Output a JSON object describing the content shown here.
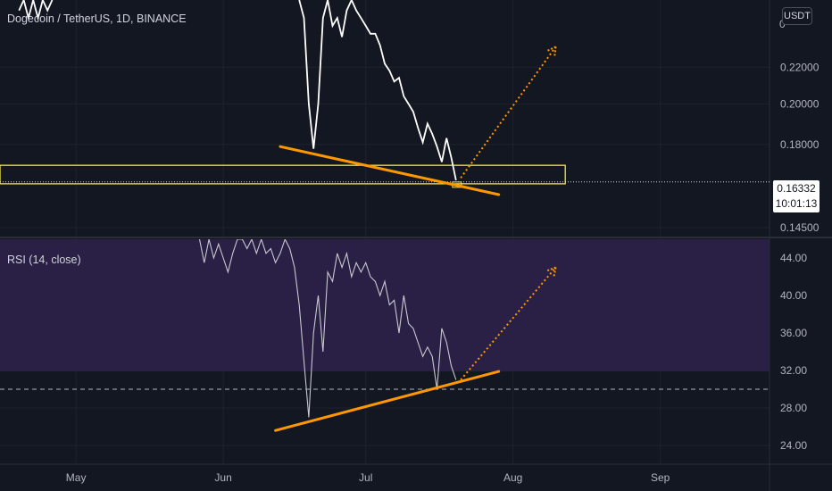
{
  "header": {
    "symbol_title": "Dogecoin / TetherUS, 1D, BINANCE",
    "currency_badge": "USDT"
  },
  "price_tag": {
    "price": "0.16332",
    "countdown": "10:01:13"
  },
  "rsi_label": "RSI (14, close)",
  "colors": {
    "background": "#131722",
    "price_line": "#ffffff",
    "trendline": "#ff9800",
    "support_zone": "#f5e642",
    "rsi_band": "#2a1f44",
    "axis_text": "#b2b5be"
  },
  "chart_data": [
    {
      "type": "line",
      "panel": "price",
      "series_label": "Dogecoin / TetherUS, 1D, BINANCE",
      "scale": "log",
      "ylim": [
        0.142,
        0.262
      ],
      "y_ticks": [
        0.145,
        0.18,
        0.2,
        0.22
      ],
      "y_tick_labels": [
        "0.14500",
        "0.18000",
        "0.20000",
        "0.22000"
      ],
      "top_tick_label": "0",
      "current_price": 0.16332,
      "x_labels": [
        "May",
        "Jun",
        "Jul",
        "Aug",
        "Sep"
      ],
      "x_label_dates": [
        "2021-05-01",
        "2021-06-01",
        "2021-07-01",
        "2021-08-01",
        "2021-09-01"
      ],
      "xlim": [
        "2021-04-15",
        "2021-09-24"
      ],
      "series": [
        {
          "x": [
            "2021-04-19",
            "2021-04-20",
            "2021-04-21",
            "2021-04-22",
            "2021-04-23",
            "2021-04-24",
            "2021-04-25",
            "2021-04-26",
            "2021-06-17",
            "2021-06-18",
            "2021-06-19",
            "2021-06-20",
            "2021-06-21",
            "2021-06-22",
            "2021-06-23",
            "2021-06-24",
            "2021-06-25",
            "2021-06-26",
            "2021-06-27",
            "2021-06-28",
            "2021-06-29",
            "2021-06-30",
            "2021-07-01",
            "2021-07-02",
            "2021-07-03",
            "2021-07-04",
            "2021-07-05",
            "2021-07-06",
            "2021-07-07",
            "2021-07-08",
            "2021-07-09",
            "2021-07-10",
            "2021-07-11",
            "2021-07-12",
            "2021-07-13",
            "2021-07-14",
            "2021-07-15",
            "2021-07-16",
            "2021-07-17",
            "2021-07-18",
            "2021-07-19",
            "2021-07-20"
          ],
          "values": [
            0.255,
            0.262,
            0.25,
            0.262,
            0.25,
            0.262,
            0.255,
            0.262,
            0.262,
            0.25,
            0.2,
            0.178,
            0.2,
            0.25,
            0.262,
            0.245,
            0.25,
            0.238,
            0.255,
            0.262,
            0.255,
            0.25,
            0.245,
            0.24,
            0.24,
            0.233,
            0.222,
            0.218,
            0.212,
            0.214,
            0.204,
            0.2,
            0.196,
            0.188,
            0.181,
            0.19,
            0.185,
            0.179,
            0.172,
            0.183,
            0.174,
            0.164
          ]
        }
      ],
      "annotations": {
        "support_zone": [
          0.1625,
          0.1705
        ],
        "trendline": {
          "from": [
            "2021-06-13",
            0.179
          ],
          "to": [
            "2021-07-29",
            0.158
          ]
        },
        "projection": {
          "from": [
            "2021-07-21",
            0.165
          ],
          "to": [
            "2021-08-10",
            0.232
          ]
        },
        "price_line": 0.16332
      },
      "grid": true
    },
    {
      "type": "line",
      "panel": "rsi",
      "title": "RSI (14, close)",
      "ylim": [
        22,
        46
      ],
      "y_ticks": [
        24,
        28,
        32,
        36,
        40,
        44
      ],
      "y_tick_labels": [
        "24.00",
        "28.00",
        "32.00",
        "36.00",
        "40.00",
        "44.00"
      ],
      "band": [
        31.9,
        46
      ],
      "reference_line": 30,
      "series": [
        {
          "x": [
            "2021-05-27",
            "2021-05-28",
            "2021-05-29",
            "2021-05-30",
            "2021-05-31",
            "2021-06-01",
            "2021-06-02",
            "2021-06-03",
            "2021-06-04",
            "2021-06-05",
            "2021-06-06",
            "2021-06-07",
            "2021-06-08",
            "2021-06-09",
            "2021-06-10",
            "2021-06-11",
            "2021-06-12",
            "2021-06-13",
            "2021-06-14",
            "2021-06-15",
            "2021-06-16",
            "2021-06-17",
            "2021-06-18",
            "2021-06-19",
            "2021-06-20",
            "2021-06-21",
            "2021-06-22",
            "2021-06-23",
            "2021-06-24",
            "2021-06-25",
            "2021-06-26",
            "2021-06-27",
            "2021-06-28",
            "2021-06-29",
            "2021-06-30",
            "2021-07-01",
            "2021-07-02",
            "2021-07-03",
            "2021-07-04",
            "2021-07-05",
            "2021-07-06",
            "2021-07-07",
            "2021-07-08",
            "2021-07-09",
            "2021-07-10",
            "2021-07-11",
            "2021-07-12",
            "2021-07-13",
            "2021-07-14",
            "2021-07-15",
            "2021-07-16",
            "2021-07-17",
            "2021-07-18",
            "2021-07-19",
            "2021-07-20"
          ],
          "values": [
            46,
            43.5,
            46,
            44,
            45.5,
            44,
            42.5,
            44.5,
            46,
            46,
            45,
            46,
            44.5,
            46,
            44.5,
            45,
            43.5,
            44.5,
            46,
            45,
            43,
            39,
            33,
            27,
            36,
            40,
            34,
            42.5,
            41.5,
            44.5,
            43,
            44.5,
            42,
            43.5,
            42.5,
            43.5,
            42,
            41.5,
            40,
            41.5,
            39,
            39.5,
            36,
            40,
            37,
            36.5,
            35,
            33.5,
            34.5,
            33.5,
            30,
            36.5,
            35,
            32.5,
            31
          ]
        }
      ],
      "annotations": {
        "trendline": {
          "from": [
            "2021-06-12",
            25.6
          ],
          "to": [
            "2021-07-29",
            31.9
          ]
        },
        "projection": {
          "from": [
            "2021-07-21",
            31
          ],
          "to": [
            "2021-08-10",
            43
          ]
        }
      },
      "grid": true
    }
  ]
}
